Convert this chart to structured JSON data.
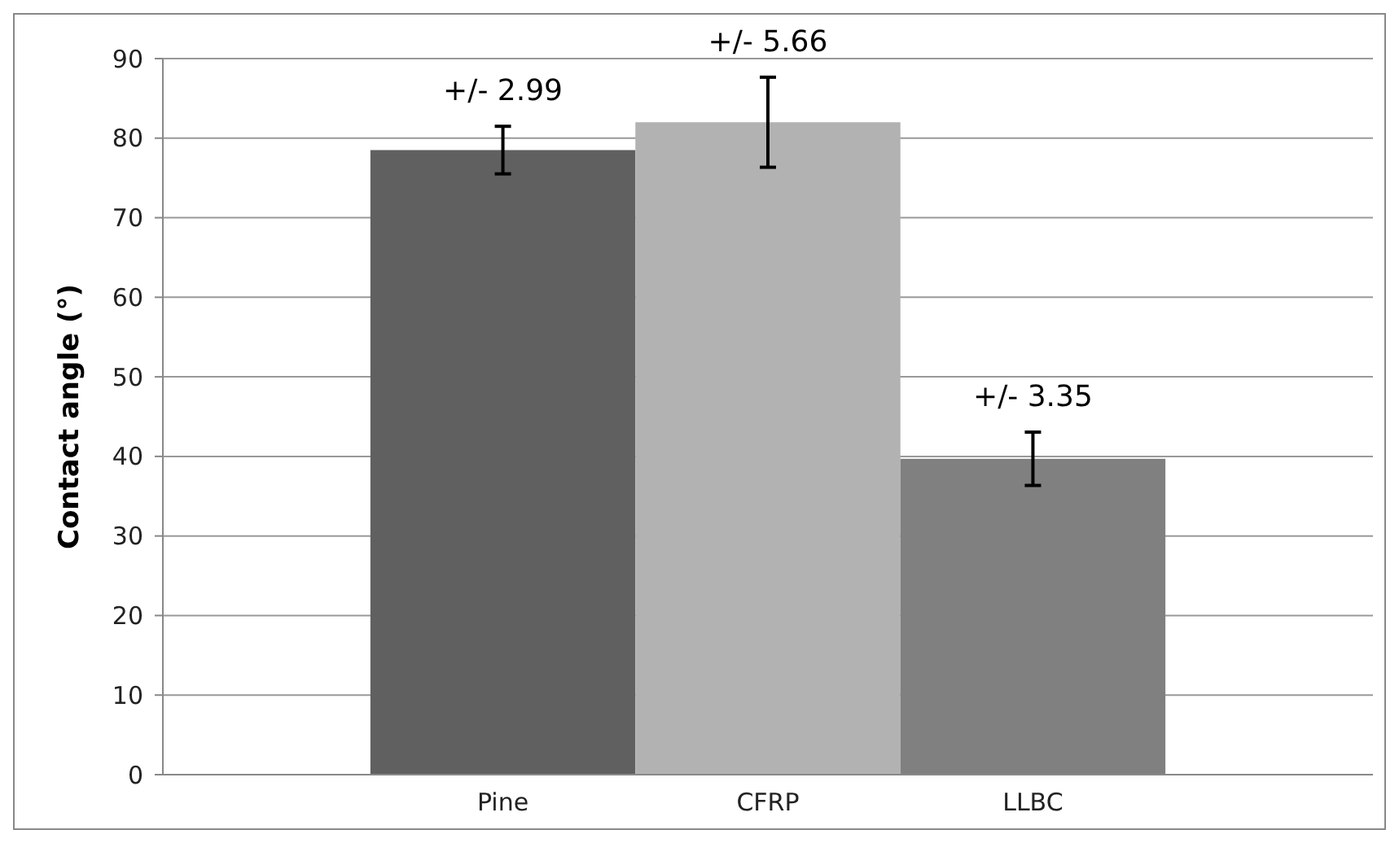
{
  "chart_data": {
    "type": "bar",
    "ylabel": "Contact angle (°)",
    "categories": [
      "Pine",
      "CFRP",
      "LLBC"
    ],
    "values": [
      78.5,
      82,
      39.7
    ],
    "colors": [
      "#606060",
      "#b2b2b2",
      "#808080"
    ],
    "errors": [
      2.99,
      5.66,
      3.35
    ],
    "annotations": [
      {
        "text": "+/- 2.99",
        "x": "Pine",
        "y": 81.49
      },
      {
        "text": "+/- 5.66",
        "x": "CFRP",
        "y": 87.66
      },
      {
        "text": "+/- 3.35",
        "x": "LLBC",
        "y": 43.05
      }
    ],
    "ylim": [
      0,
      90
    ],
    "yticks": [
      0,
      10,
      20,
      30,
      40,
      50,
      60,
      70,
      80,
      90
    ],
    "grid": "y"
  }
}
